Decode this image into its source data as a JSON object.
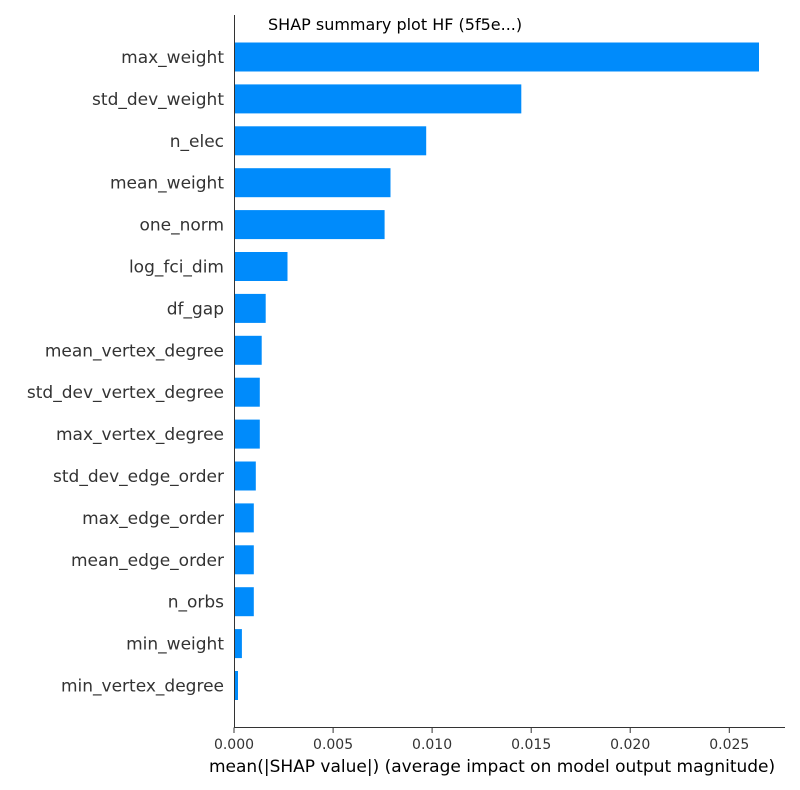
{
  "chart_data": {
    "type": "bar",
    "orientation": "horizontal",
    "title": "SHAP summary plot HF (5f5e...)",
    "xlabel": "mean(|SHAP value|) (average impact on model output magnitude)",
    "ylabel": "",
    "categories": [
      "max_weight",
      "std_dev_weight",
      "n_elec",
      "mean_weight",
      "one_norm",
      "log_fci_dim",
      "df_gap",
      "mean_vertex_degree",
      "std_dev_vertex_degree",
      "max_vertex_degree",
      "std_dev_edge_order",
      "max_edge_order",
      "mean_edge_order",
      "n_orbs",
      "min_weight",
      "min_vertex_degree"
    ],
    "values": [
      0.0265,
      0.0145,
      0.0097,
      0.0079,
      0.0076,
      0.0027,
      0.0016,
      0.0014,
      0.0013,
      0.0013,
      0.0011,
      0.001,
      0.001,
      0.001,
      0.0004,
      0.0002
    ],
    "xlim": [
      0,
      0.0278
    ],
    "xticks": [
      "0.000",
      "0.005",
      "0.010",
      "0.015",
      "0.020",
      "0.025"
    ],
    "xtick_values": [
      0,
      0.005,
      0.01,
      0.015,
      0.02,
      0.025
    ],
    "grid": false,
    "legend": "none",
    "bar_color": "#008bfb",
    "axis_color": "#333333",
    "text_color": "#333333"
  }
}
